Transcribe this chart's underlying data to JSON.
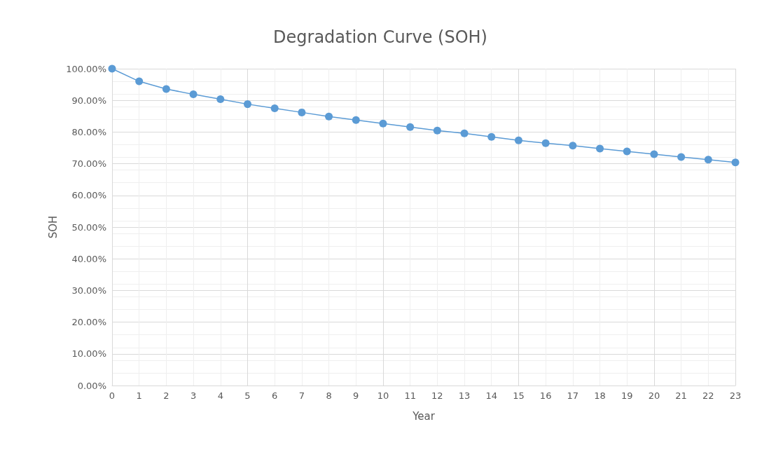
{
  "chart_data": {
    "type": "line",
    "title": "Degradation Curve (SOH)",
    "xlabel": "Year",
    "ylabel": "SOH",
    "x": [
      0,
      1,
      2,
      3,
      4,
      5,
      6,
      7,
      8,
      9,
      10,
      11,
      12,
      13,
      14,
      15,
      16,
      17,
      18,
      19,
      20,
      21,
      22,
      23
    ],
    "series": [
      {
        "color": "#5b9bd5",
        "values": [
          100,
          96,
          93.6,
          91.9,
          90.4,
          88.8,
          87.5,
          86.2,
          84.9,
          83.8,
          82.7,
          81.6,
          80.5,
          79.6,
          78.5,
          77.4,
          76.5,
          75.7,
          74.8,
          73.9,
          73,
          72.1,
          71.3,
          70.4
        ]
      }
    ],
    "xlim": [
      0,
      23
    ],
    "xticks": [
      0,
      1,
      2,
      3,
      4,
      5,
      6,
      7,
      8,
      9,
      10,
      11,
      12,
      13,
      14,
      15,
      16,
      17,
      18,
      19,
      20,
      21,
      22,
      23
    ],
    "ylim": [
      0,
      100
    ],
    "yticks": [
      {
        "value": 0,
        "label": "0.00%"
      },
      {
        "value": 10,
        "label": "10.00%"
      },
      {
        "value": 20,
        "label": "20.00%"
      },
      {
        "value": 30,
        "label": "30.00%"
      },
      {
        "value": 40,
        "label": "40.00%"
      },
      {
        "value": 50,
        "label": "50.00%"
      },
      {
        "value": 60,
        "label": "60.00%"
      },
      {
        "value": 70,
        "label": "70.00%"
      },
      {
        "value": 80,
        "label": "80.00%"
      },
      {
        "value": 90,
        "label": "90.00%"
      },
      {
        "value": 100,
        "label": "100.00%"
      }
    ],
    "grid": true,
    "marker": "circle",
    "line_style": "solid"
  }
}
